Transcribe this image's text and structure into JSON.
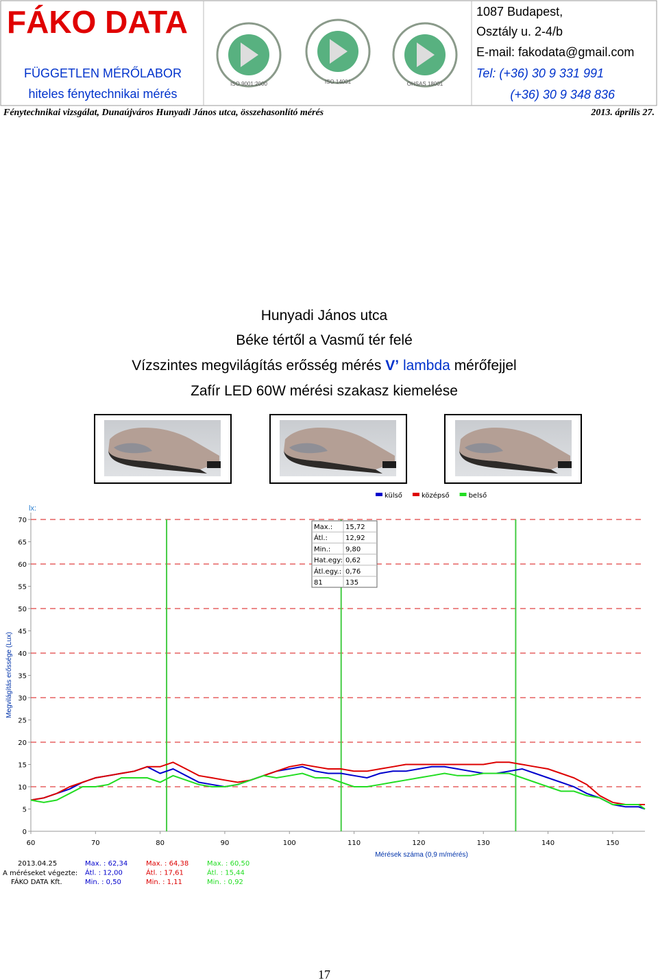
{
  "header": {
    "company": "FÁKO DATA",
    "tagline": "FÜGGETLEN MÉRŐLABOR",
    "subtitle": "hiteles fénytechnikai mérés",
    "logos": [
      "ISO 9001:2000",
      "ISO 14001",
      "OHSAS 18001"
    ],
    "address": [
      "1087 Budapest,",
      "Osztály u. 2-4/b",
      "E-mail: fakodata@gmail.com",
      "Tel:  (+36) 30 9 331 991",
      "(+36) 30 9 348 836"
    ],
    "description": "Fénytechnikai vizsgálat, Dunaújváros Hunyadi János utca, összehasonlító mérés",
    "date": "2013. április 27."
  },
  "title_lines": {
    "street": "Hunyadi János utca",
    "section": "Béke tértől a Vasmű tér felé",
    "measurement": [
      "Vízszintes megvilágítás erősség mérés",
      "V’",
      "lambda",
      "mérőfejjel"
    ],
    "highlight": "Zafír LED 60W mérési szakasz kiemelése"
  },
  "chart_data": {
    "type": "line",
    "y_unit": "lx:",
    "y_label": "Megvilágítás erőssége (Lux)",
    "x_label": "Mérések száma (0,9 m/mérés)",
    "xlim": [
      60,
      155
    ],
    "ylim": [
      0,
      70
    ],
    "xticks": [
      60,
      70,
      80,
      90,
      100,
      110,
      120,
      130,
      140,
      150
    ],
    "yticks": [
      0,
      5,
      10,
      15,
      20,
      25,
      30,
      35,
      40,
      45,
      50,
      55,
      60,
      65,
      70
    ],
    "dashed_grid": [
      10,
      20,
      30,
      40,
      50,
      60,
      70
    ],
    "markers": [
      81,
      108,
      135
    ],
    "x": [
      60,
      62,
      64,
      66,
      68,
      70,
      72,
      74,
      76,
      78,
      80,
      82,
      84,
      86,
      88,
      90,
      92,
      94,
      96,
      98,
      100,
      102,
      104,
      106,
      108,
      110,
      112,
      114,
      116,
      118,
      120,
      122,
      124,
      126,
      128,
      130,
      132,
      134,
      136,
      138,
      140,
      142,
      144,
      146,
      148,
      150,
      152,
      154,
      155
    ],
    "series": [
      {
        "name": "külső",
        "color": "#0000cc",
        "values": [
          7,
          7.5,
          8.5,
          9.5,
          11,
          12,
          12.5,
          13,
          13.5,
          14.5,
          13,
          14,
          12.5,
          11,
          10.5,
          10,
          10.5,
          11.5,
          12.5,
          13.5,
          14,
          14.5,
          13.5,
          13,
          13,
          12.5,
          12,
          13,
          13.5,
          13.5,
          14,
          14.5,
          14.5,
          14,
          13.5,
          13,
          13,
          13.5,
          14,
          13,
          12,
          11,
          10,
          8.5,
          7.5,
          6,
          5.5,
          5.5,
          5
        ]
      },
      {
        "name": "középső",
        "color": "#dd0000",
        "values": [
          7,
          7.5,
          8.5,
          10,
          11,
          12,
          12.5,
          13,
          13.5,
          14.5,
          14.5,
          15.5,
          14,
          12.5,
          12,
          11.5,
          11,
          11.5,
          12.5,
          13.5,
          14.5,
          15,
          14.5,
          14,
          14,
          13.5,
          13.5,
          14,
          14.5,
          15,
          15,
          15,
          15,
          15,
          15,
          15,
          15.5,
          15.5,
          15,
          14.5,
          14,
          13,
          12,
          10.5,
          8,
          6.5,
          6,
          6,
          6
        ]
      },
      {
        "name": "belső",
        "color": "#22dd22",
        "values": [
          7,
          6.5,
          7,
          8.5,
          10,
          10,
          10.5,
          12,
          12,
          12,
          11,
          12.5,
          11.5,
          10.5,
          10,
          10,
          10.5,
          11.5,
          12.5,
          12,
          12.5,
          13,
          12,
          12,
          11,
          10,
          10,
          10.5,
          11,
          11.5,
          12,
          12.5,
          13,
          12.5,
          12.5,
          13,
          13,
          13,
          12,
          11,
          10,
          9,
          9,
          8,
          7.5,
          6,
          6,
          6,
          5
        ]
      }
    ]
  },
  "stats_box": [
    [
      "Max.:",
      "15,72"
    ],
    [
      "Átl.:",
      "12,92"
    ],
    [
      "Min.:",
      "9,80"
    ],
    [
      "Hat.egy:",
      "0,62"
    ],
    [
      "Átl.egy.:",
      "0,76"
    ],
    [
      "81",
      "135"
    ]
  ],
  "footer": {
    "info": [
      "2013.04.25",
      "A méréseket végezte:",
      "FÁKO DATA Kft."
    ],
    "stats": [
      [
        "Max. : 62,34",
        "Átl. : 12,00",
        "Min. : 0,50"
      ],
      [
        "Max. : 64,38",
        "Átl. : 17,61",
        "Min. : 1,11"
      ],
      [
        "Max. : 60,50",
        "Átl. : 15,44",
        "Min. : 0,92"
      ]
    ]
  },
  "page_number": "17"
}
